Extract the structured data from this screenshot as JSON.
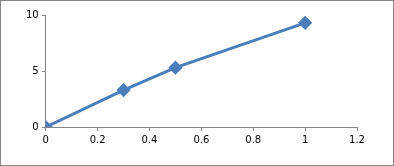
{
  "chart_data": {
    "type": "line",
    "x": [
      0,
      0.3,
      0.5,
      1
    ],
    "values": [
      0,
      3.3,
      5.3,
      9.3
    ],
    "color": "#4a7ebb",
    "marker": "diamond",
    "xlim": [
      0,
      1.2
    ],
    "xticks": [
      0,
      0.2,
      0.4,
      0.6,
      0.8,
      1,
      1.2
    ],
    "ylim": [
      0,
      10
    ],
    "yticks": [
      0,
      5,
      10
    ],
    "grid": false
  }
}
